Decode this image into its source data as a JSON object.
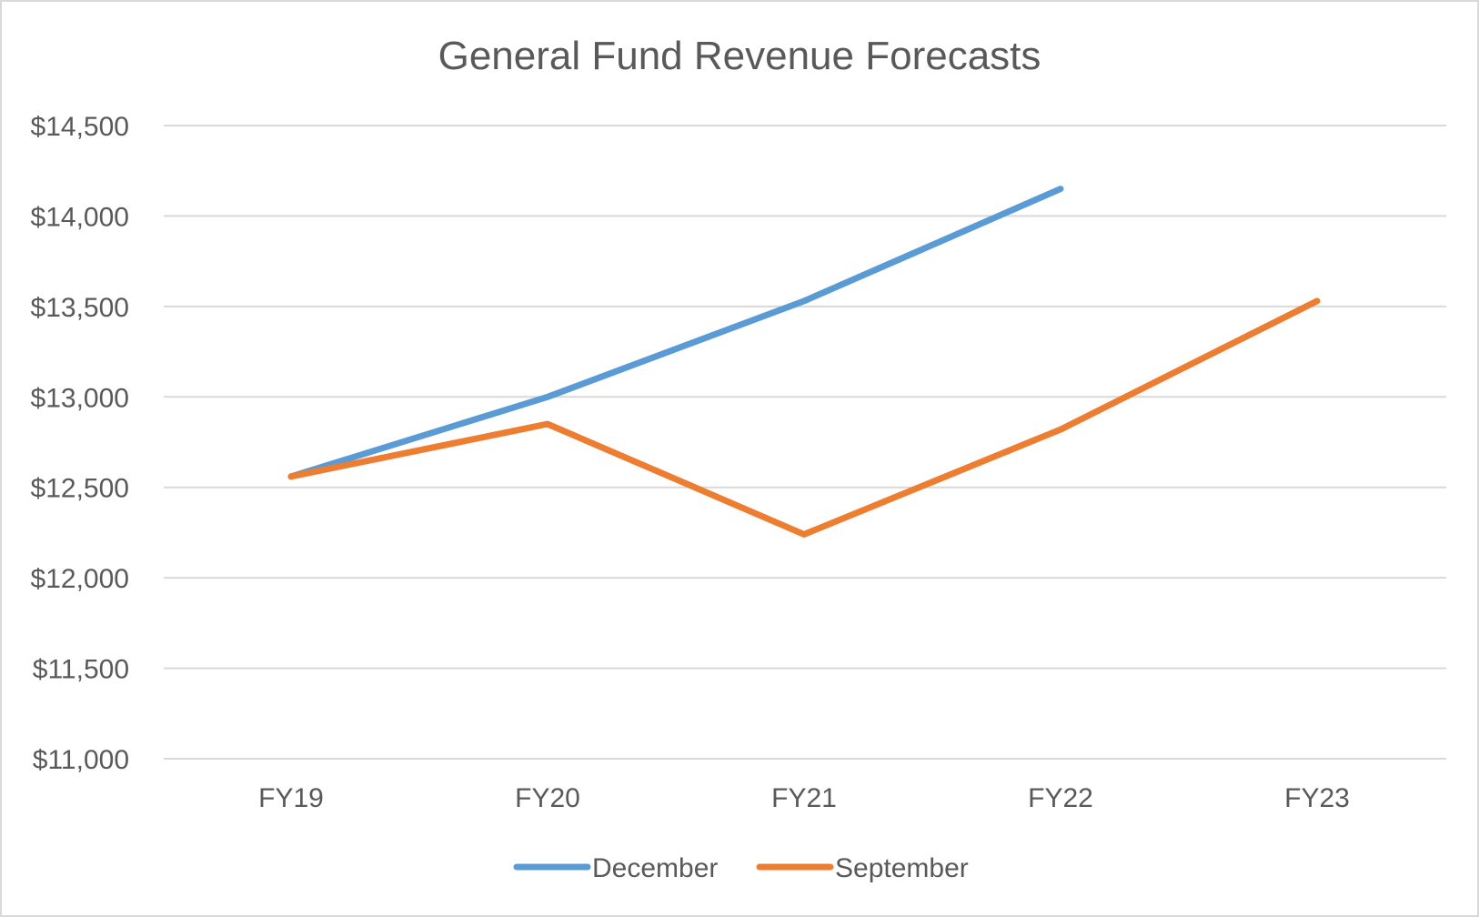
{
  "chart_data": {
    "type": "line",
    "title": "General Fund Revenue Forecasts",
    "xlabel": "",
    "ylabel": "",
    "categories": [
      "FY19",
      "FY20",
      "FY21",
      "FY22",
      "FY23"
    ],
    "ylim": [
      11000,
      14500
    ],
    "yticks": [
      11000,
      11500,
      12000,
      12500,
      13000,
      13500,
      14000,
      14500
    ],
    "ytick_labels": [
      "$11,000",
      "$11,500",
      "$12,000",
      "$12,500",
      "$13,000",
      "$13,500",
      "$14,000",
      "$14,500"
    ],
    "grid": true,
    "legend_position": "bottom",
    "series": [
      {
        "name": "December",
        "color": "#5b9bd5",
        "values": [
          12560,
          13000,
          13530,
          14150,
          null
        ]
      },
      {
        "name": "September",
        "color": "#ed7d31",
        "values": [
          12560,
          12850,
          12240,
          12820,
          13530
        ]
      }
    ]
  }
}
